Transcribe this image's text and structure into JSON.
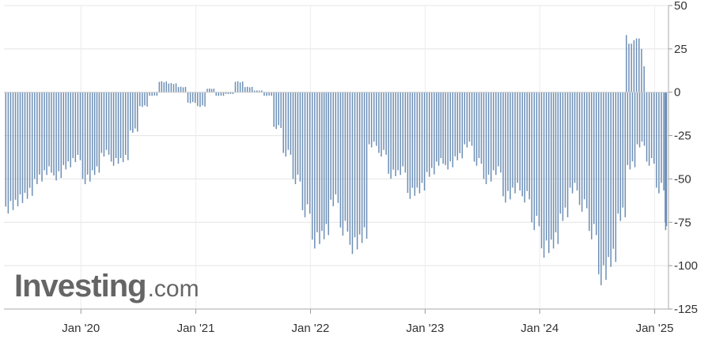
{
  "watermark": {
    "brand": "Investing",
    "suffix": ".com"
  },
  "chart_data": {
    "type": "bar",
    "title": "",
    "xlabel": "",
    "ylabel": "",
    "ylim": [
      -125,
      50
    ],
    "xlim": [
      "2019-05-01",
      "2025-02-14"
    ],
    "y_ticks": [
      50,
      25,
      0,
      -25,
      -50,
      -75,
      -100,
      -125
    ],
    "y_tick_labels": [
      "50",
      "25",
      "0",
      "-25",
      "-50",
      "-75",
      "-100",
      "-125"
    ],
    "x_ticks": [
      "2020-01-01",
      "2021-01-01",
      "2022-01-01",
      "2023-01-01",
      "2024-01-01",
      "2025-01-01"
    ],
    "x_tick_labels": [
      "Jan '20",
      "Jan '21",
      "Jan '22",
      "Jan '23",
      "Jan '24",
      "Jan '25"
    ],
    "grid": true,
    "bar_color": "#6d8fb6",
    "series": [
      {
        "x": [
          "2019-05-01",
          "2019-06-01",
          "2019-07-01",
          "2019-08-01",
          "2019-09-01",
          "2019-10-01",
          "2019-11-01",
          "2019-12-01",
          "2020-01-01",
          "2020-02-01",
          "2020-03-01",
          "2020-04-01",
          "2020-05-01",
          "2020-06-01",
          "2020-07-01",
          "2020-08-01",
          "2020-09-01",
          "2020-10-01",
          "2020-11-01",
          "2020-12-01",
          "2021-01-01",
          "2021-02-01",
          "2021-03-01",
          "2021-04-01",
          "2021-05-01",
          "2021-06-01",
          "2021-07-01",
          "2021-08-01",
          "2021-09-01",
          "2021-10-01",
          "2021-11-01",
          "2021-12-01",
          "2022-01-01",
          "2022-02-01",
          "2022-03-01",
          "2022-04-01",
          "2022-05-01",
          "2022-06-01",
          "2022-07-01",
          "2022-08-01",
          "2022-09-01",
          "2022-10-01",
          "2022-11-01",
          "2022-12-01",
          "2023-01-01",
          "2023-02-01",
          "2023-03-01",
          "2023-04-01",
          "2023-05-01",
          "2023-06-01",
          "2023-07-01",
          "2023-08-01",
          "2023-09-01",
          "2023-10-01",
          "2023-11-01",
          "2023-12-01",
          "2024-01-01",
          "2024-02-01",
          "2024-03-01",
          "2024-04-01",
          "2024-05-01",
          "2024-06-01",
          "2024-07-01",
          "2024-08-01",
          "2024-09-01",
          "2024-10-01",
          "2024-11-01",
          "2024-12-01",
          "2025-01-01",
          "2025-02-01"
        ],
        "values": [
          -66,
          -62,
          -58,
          -50,
          -45,
          -48,
          -42,
          -38,
          -50,
          -45,
          -35,
          -40,
          -38,
          -22,
          -8,
          -2,
          6,
          5,
          3,
          -6,
          -8,
          2,
          -2,
          -1,
          6,
          3,
          1,
          -2,
          -20,
          -35,
          -50,
          -68,
          -85,
          -80,
          -62,
          -78,
          -88,
          -82,
          -30,
          -35,
          -47,
          -45,
          -58,
          -55,
          -46,
          -40,
          -42,
          -37,
          -30,
          -40,
          -50,
          -45,
          -60,
          -55,
          -60,
          -75,
          -90,
          -85,
          -70,
          -55,
          -65,
          -80,
          -105,
          -95,
          -70,
          -42,
          -30,
          -40,
          -55,
          -75
        ],
        "highlights": [
          {
            "x": "2024-10-01",
            "values": [
              33,
              28,
              28,
              30,
              31,
              31,
              25,
              15
            ]
          }
        ]
      }
    ]
  }
}
